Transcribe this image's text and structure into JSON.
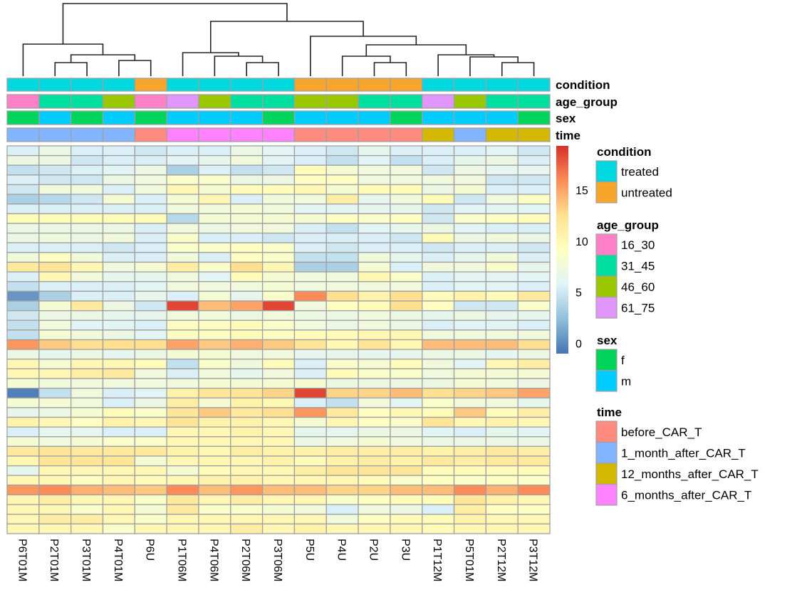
{
  "chart_data": {
    "type": "heatmap",
    "title": "",
    "columns": [
      "P6T01M",
      "P2T01M",
      "P3T01M",
      "P4T01M",
      "P6U",
      "P1T06M",
      "P4T06M",
      "P2T06M",
      "P3T06M",
      "P5U",
      "P4U",
      "P2U",
      "P3U",
      "P1T12M",
      "P5T01M",
      "P2T12M",
      "P3T12M"
    ],
    "color_scale": {
      "palette": [
        "#4575b4",
        "#91bfdb",
        "#e0f3f8",
        "#ffffbf",
        "#fee090",
        "#fc8d59",
        "#d73027"
      ],
      "range": [
        -1,
        19.3
      ],
      "ticks": [
        "0",
        "5",
        "10",
        "15"
      ],
      "tick_values": [
        0,
        5,
        10,
        15
      ]
    },
    "values": [
      [
        5.5,
        7,
        5.5,
        5.5,
        5,
        5.5,
        5.5,
        7,
        6,
        5.5,
        5,
        6.5,
        5.5,
        5.5,
        5.5,
        6,
        5
      ],
      [
        7,
        7,
        5,
        5.5,
        5.5,
        6,
        6.5,
        7.5,
        6,
        5.5,
        4.5,
        6,
        4.5,
        5.5,
        6.5,
        7,
        5.5
      ],
      [
        4.5,
        5,
        5.5,
        6,
        7,
        3.5,
        5.5,
        4.5,
        5,
        9.5,
        8,
        7.5,
        7.5,
        5,
        7,
        6.5,
        6.5
      ],
      [
        5.5,
        5,
        5,
        7,
        7.5,
        8.5,
        8.5,
        7,
        7,
        9,
        9,
        7.5,
        7.5,
        7.5,
        7.5,
        5,
        5
      ],
      [
        5,
        7.5,
        7.5,
        5.5,
        7.5,
        10,
        8,
        9.5,
        9.5,
        10,
        8,
        9.5,
        9.5,
        7,
        8,
        5.5,
        5.5
      ],
      [
        3.5,
        4,
        5,
        8,
        5.5,
        8,
        10,
        5.5,
        7.5,
        7.5,
        11,
        6.5,
        7.5,
        9.5,
        5,
        7.5,
        9
      ],
      [
        5.5,
        5.5,
        5.5,
        5.5,
        5.5,
        7.5,
        7.5,
        8,
        7.5,
        6,
        6,
        6.5,
        6.5,
        5,
        6,
        6,
        6
      ],
      [
        9.5,
        9.5,
        9.5,
        9.5,
        9.5,
        4,
        8,
        8,
        8,
        8,
        9,
        8.5,
        9,
        5,
        8.5,
        9,
        9.5
      ],
      [
        7,
        7,
        7,
        7,
        5.5,
        7.5,
        7,
        7.5,
        7.5,
        5.5,
        4.5,
        6,
        6.5,
        7,
        6,
        5.5,
        5.5
      ],
      [
        7,
        7.5,
        7,
        7.5,
        5.5,
        8.5,
        5.5,
        5.5,
        5,
        5.5,
        5.5,
        5.5,
        5,
        9.5,
        7,
        7.5,
        7
      ],
      [
        5.5,
        5.5,
        5.5,
        5,
        5.5,
        8.5,
        8.5,
        9,
        8.5,
        5.5,
        5,
        5.5,
        5.5,
        5,
        5.5,
        5.5,
        5
      ],
      [
        7.5,
        9,
        7.5,
        5.5,
        5.5,
        7.5,
        5.5,
        9,
        8.5,
        4.5,
        4.5,
        7.5,
        6.5,
        5.5,
        6.5,
        7.5,
        5.5
      ],
      [
        11.5,
        12,
        10,
        7.5,
        8,
        11,
        8.5,
        12.5,
        10,
        3.5,
        3.5,
        8,
        5.5,
        7.5,
        7.5,
        8.5,
        6.5
      ],
      [
        5.5,
        10,
        7.5,
        6.5,
        6.5,
        7.5,
        6,
        9.5,
        8,
        7.5,
        7.5,
        10,
        8.5,
        5.5,
        6,
        6,
        6
      ],
      [
        4.5,
        5.5,
        5.5,
        5.5,
        6,
        7.5,
        7.5,
        7.5,
        8,
        7.5,
        7.5,
        7.5,
        7.5,
        5.5,
        6,
        6,
        5.5
      ],
      [
        0.5,
        3.5,
        5.5,
        5.5,
        6.5,
        5.5,
        8,
        6.5,
        8.5,
        16,
        12.5,
        10.5,
        12.5,
        9.5,
        10.5,
        9.5,
        11.5
      ],
      [
        3.5,
        8,
        11.5,
        7,
        5,
        18.5,
        14,
        15,
        18.5,
        7.5,
        9,
        9.5,
        12.5,
        9,
        5,
        5,
        8.5
      ],
      [
        5,
        7,
        7,
        6.5,
        6.5,
        7.5,
        7.5,
        7,
        7.5,
        7,
        7,
        7.5,
        7,
        6.5,
        7,
        6.5,
        6.5
      ],
      [
        4.5,
        7.5,
        6,
        6,
        5.5,
        9,
        9,
        9.5,
        8.5,
        7.5,
        7,
        7.5,
        7,
        5.5,
        6,
        6,
        5.5
      ],
      [
        4.5,
        8,
        7.5,
        7,
        6,
        9,
        9,
        9.5,
        9,
        9.5,
        9.5,
        10,
        10,
        7.5,
        7.5,
        7.5,
        7.5
      ],
      [
        15.5,
        13.5,
        12.5,
        12.5,
        12.5,
        15,
        13.5,
        14.5,
        13.5,
        12,
        10,
        12,
        10,
        14,
        14,
        14,
        12.5
      ],
      [
        7,
        6.5,
        7,
        6.5,
        7,
        8,
        8,
        7.5,
        7.5,
        6.5,
        6.5,
        6.5,
        6.5,
        7,
        7,
        6.5,
        7
      ],
      [
        10,
        8,
        10,
        10,
        9.5,
        4.5,
        8.5,
        7.5,
        9.5,
        5.5,
        8.5,
        8,
        9.5,
        7.5,
        6,
        10,
        11
      ],
      [
        10,
        10,
        11,
        11.5,
        7.5,
        5.5,
        7.5,
        6.5,
        7.5,
        5.5,
        9.5,
        8.5,
        8.5,
        7.5,
        8,
        8,
        8
      ],
      [
        8,
        7.5,
        7.5,
        7.5,
        7.5,
        7.5,
        8,
        8,
        8,
        8,
        7,
        7,
        7,
        7,
        8,
        7.5,
        7
      ],
      [
        -0.5,
        4.5,
        7.5,
        5.5,
        6,
        10.5,
        12,
        12,
        13,
        18.5,
        13,
        13,
        14,
        12.5,
        13,
        13.5,
        15
      ],
      [
        8,
        8,
        7.5,
        5.5,
        7,
        11,
        8,
        10.5,
        10,
        5.5,
        4.5,
        7.5,
        6,
        8.5,
        7.5,
        7.5,
        6.5
      ],
      [
        6.5,
        7,
        8,
        9.5,
        8.5,
        12,
        13.5,
        11.5,
        12.5,
        15.5,
        11.5,
        9,
        10,
        9.5,
        13.5,
        9.5,
        11
      ],
      [
        10.5,
        10,
        9,
        10.5,
        10,
        12,
        10.5,
        10.5,
        10,
        8,
        10,
        9,
        8.5,
        12,
        10,
        10.5,
        10
      ],
      [
        5.5,
        6.5,
        6.5,
        5.5,
        5.5,
        10,
        10,
        10.5,
        10,
        6.5,
        6.5,
        7,
        7,
        6,
        5.5,
        6.5,
        6
      ],
      [
        8,
        7.5,
        8,
        8.5,
        8.5,
        10,
        10,
        10,
        10,
        7,
        7.5,
        8,
        7.5,
        7,
        7,
        7,
        7
      ],
      [
        11.5,
        12,
        11.5,
        11.5,
        11.5,
        10.5,
        10,
        11,
        10.5,
        10.5,
        11,
        11,
        11,
        10.5,
        11,
        11.5,
        11
      ],
      [
        10,
        12,
        12,
        12,
        8,
        10,
        10,
        10,
        10.5,
        9.5,
        10.5,
        11,
        10.5,
        11.5,
        11,
        11.5,
        11.5
      ],
      [
        6.5,
        10,
        10,
        10,
        10,
        8,
        9.5,
        10,
        10,
        11,
        12,
        12,
        12,
        9.5,
        9.5,
        9.5,
        9.5
      ],
      [
        10,
        10,
        9,
        10,
        9.5,
        10,
        10.5,
        10.5,
        10,
        10,
        10,
        9.5,
        8.5,
        9,
        8.5,
        9,
        8.5
      ],
      [
        15.5,
        16,
        14.5,
        14,
        13.5,
        16,
        14,
        15.5,
        14,
        14,
        13,
        13,
        14,
        14,
        16,
        14.5,
        16
      ],
      [
        10,
        11,
        10,
        10,
        8.5,
        11.5,
        10,
        11,
        10,
        10,
        8.5,
        9,
        9.5,
        9.5,
        12,
        10.5,
        10
      ],
      [
        10,
        10,
        8.5,
        10,
        8,
        11.5,
        8.5,
        8.5,
        8,
        7.5,
        5.5,
        7.5,
        7,
        5.5,
        11,
        9,
        9
      ],
      [
        10,
        11,
        11,
        10,
        8.5,
        10,
        10,
        10,
        10,
        10,
        7.5,
        9,
        9.5,
        9.5,
        10.5,
        10,
        10
      ],
      [
        10,
        10,
        10,
        8.5,
        10,
        10,
        10,
        11,
        10,
        10.5,
        10,
        10,
        10,
        9.5,
        10,
        10,
        10
      ]
    ],
    "annotations": [
      {
        "name": "condition",
        "values": [
          "treated",
          "treated",
          "treated",
          "treated",
          "untreated",
          "treated",
          "treated",
          "treated",
          "treated",
          "untreated",
          "untreated",
          "untreated",
          "untreated",
          "treated",
          "treated",
          "treated",
          "treated"
        ],
        "levels": [
          {
            "label": "treated",
            "color": "#00d8e0"
          },
          {
            "label": "untreated",
            "color": "#f8a52c"
          }
        ]
      },
      {
        "name": "age_group",
        "values": [
          "16_30",
          "31_45",
          "31_45",
          "46_60",
          "16_30",
          "61_75",
          "46_60",
          "31_45",
          "31_45",
          "46_60",
          "46_60",
          "31_45",
          "31_45",
          "61_75",
          "46_60",
          "31_45",
          "31_45"
        ],
        "levels": [
          {
            "label": "16_30",
            "color": "#ff80c8"
          },
          {
            "label": "31_45",
            "color": "#00dea0"
          },
          {
            "label": "46_60",
            "color": "#99c800"
          },
          {
            "label": "61_75",
            "color": "#e096fa"
          }
        ]
      },
      {
        "name": "sex",
        "values": [
          "f",
          "m",
          "f",
          "m",
          "f",
          "m",
          "m",
          "m",
          "f",
          "m",
          "m",
          "m",
          "f",
          "m",
          "m",
          "m",
          "f"
        ],
        "levels": [
          {
            "label": "f",
            "color": "#00d45a"
          },
          {
            "label": "m",
            "color": "#00ccff"
          }
        ]
      },
      {
        "name": "time",
        "values": [
          "1_month_after_CAR_T",
          "1_month_after_CAR_T",
          "1_month_after_CAR_T",
          "1_month_after_CAR_T",
          "before_CAR_T",
          "6_months_after_CAR_T",
          "6_months_after_CAR_T",
          "6_months_after_CAR_T",
          "6_months_after_CAR_T",
          "before_CAR_T",
          "before_CAR_T",
          "before_CAR_T",
          "before_CAR_T",
          "12_months_after_CAR_T",
          "1_month_after_CAR_T",
          "12_months_after_CAR_T",
          "12_months_after_CAR_T"
        ],
        "levels": [
          {
            "label": "before_CAR_T",
            "color": "#ff8a80"
          },
          {
            "label": "1_month_after_CAR_T",
            "color": "#82b4ff"
          },
          {
            "label": "12_months_after_CAR_T",
            "color": "#d2b800"
          },
          {
            "label": "6_months_after_CAR_T",
            "color": "#ff82ff"
          }
        ]
      }
    ],
    "column_dendrogram": true,
    "grid": true,
    "legend_placement": "right"
  }
}
